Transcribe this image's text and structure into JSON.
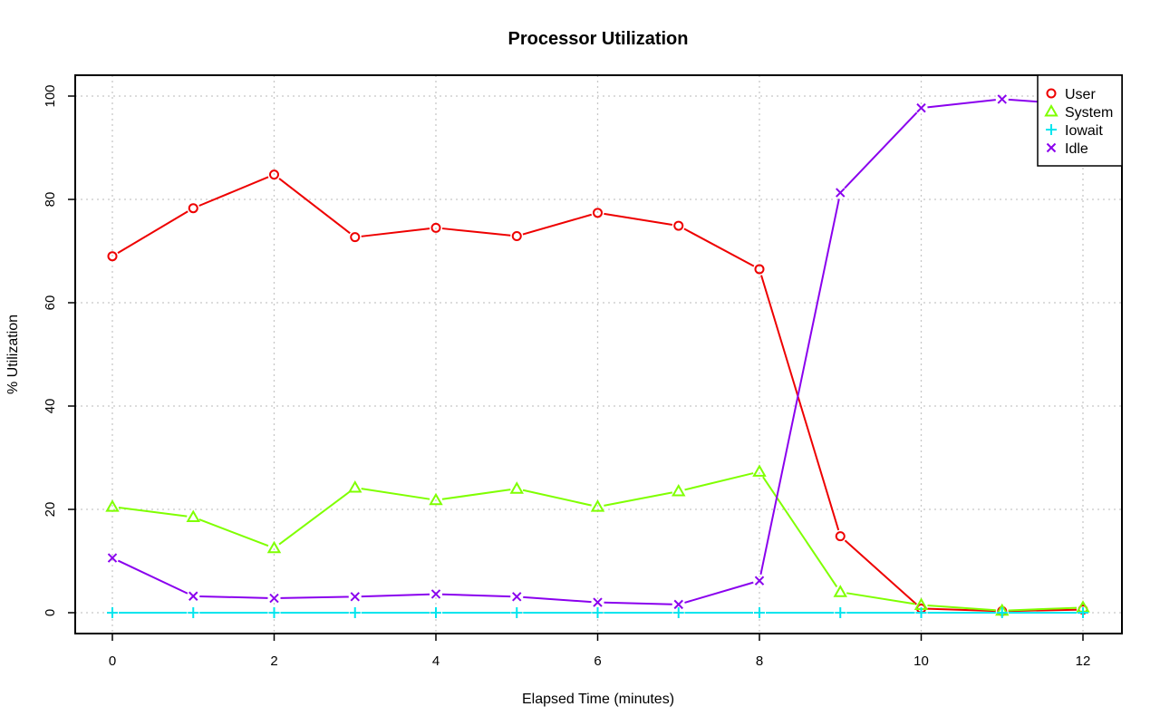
{
  "chart_data": {
    "type": "line",
    "title": "Processor Utilization",
    "xlabel": "Elapsed Time (minutes)",
    "ylabel": "% Utilization",
    "xlim": [
      0,
      12
    ],
    "ylim": [
      0,
      100
    ],
    "x_ticks": [
      0,
      2,
      4,
      6,
      8,
      10,
      12
    ],
    "y_ticks": [
      0,
      20,
      40,
      60,
      80,
      100
    ],
    "grid": true,
    "legend_position": "top-right",
    "x": [
      0,
      1,
      2,
      3,
      4,
      5,
      6,
      7,
      8,
      9,
      10,
      11,
      12
    ],
    "series": [
      {
        "name": "User",
        "color": "#ee0000",
        "marker": "circle",
        "values": [
          69,
          78.3,
          84.8,
          72.7,
          74.5,
          72.9,
          77.4,
          74.9,
          66.5,
          14.8,
          0.8,
          0.3,
          0.6
        ]
      },
      {
        "name": "System",
        "color": "#7fff00",
        "marker": "triangle",
        "values": [
          20.5,
          18.5,
          12.5,
          24.2,
          21.8,
          24,
          20.5,
          23.5,
          27.3,
          4,
          1.5,
          0.4,
          1
        ]
      },
      {
        "name": "Iowait",
        "color": "#00e5ee",
        "marker": "plus",
        "values": [
          0,
          0,
          0,
          0,
          0,
          0,
          0,
          0,
          0,
          0,
          0,
          0,
          0
        ]
      },
      {
        "name": "Idle",
        "color": "#8a00ee",
        "marker": "x",
        "values": [
          10.6,
          3.2,
          2.8,
          3.1,
          3.6,
          3.1,
          2,
          1.6,
          6.2,
          81.3,
          97.7,
          99.4,
          98.3
        ]
      }
    ]
  }
}
